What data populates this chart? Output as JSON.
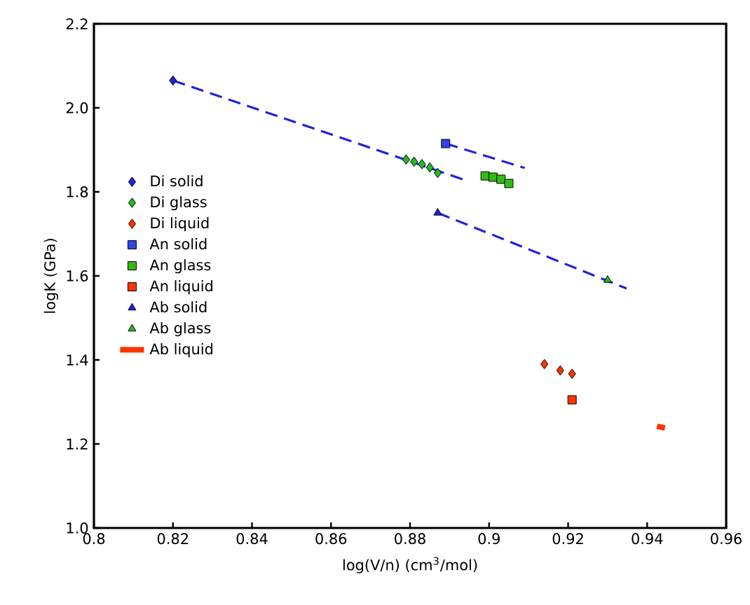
{
  "chart_data": {
    "type": "scatter",
    "xlabel": "log(V/n) (cm$^{3}$/mol)",
    "ylabel": "logK (GPa)",
    "xlim": [
      0.8,
      0.96
    ],
    "ylim": [
      1.0,
      2.2
    ],
    "xticks": [
      0.8,
      0.82,
      0.84,
      0.86,
      0.88,
      0.9,
      0.92,
      0.94,
      0.96
    ],
    "yticks": [
      {
        "value": 1.0,
        "label": "1.0"
      },
      {
        "value": 1.2,
        "label": "1.2"
      },
      {
        "value": 1.4,
        "label": "1.4"
      },
      {
        "value": 1.6,
        "label": "1.6"
      },
      {
        "value": 1.8,
        "label": "1.8"
      },
      {
        "value": 2.0,
        "label": "2.0"
      },
      {
        "value": 2.2,
        "label": "2.2"
      }
    ],
    "grid": false,
    "legend": "left",
    "series": [
      {
        "name": "Di solid",
        "color": "#2222dd",
        "marker": "diamond",
        "x": [
          0.82
        ],
        "values": [
          2.065
        ]
      },
      {
        "name": "Di glass",
        "color": "#22bb22",
        "marker": "diamond",
        "x": [
          0.879,
          0.881,
          0.883,
          0.885,
          0.887
        ],
        "values": [
          1.877,
          1.872,
          1.866,
          1.858,
          1.845
        ]
      },
      {
        "name": "Di liquid",
        "color": "#ff3300",
        "marker": "diamond",
        "x": [
          0.914,
          0.918,
          0.921
        ],
        "values": [
          1.39,
          1.375,
          1.367
        ]
      },
      {
        "name": "An solid",
        "color": "#3344ee",
        "marker": "square",
        "x": [
          0.889
        ],
        "values": [
          1.915
        ]
      },
      {
        "name": "An glass",
        "color": "#33bb11",
        "marker": "square",
        "x": [
          0.899,
          0.901,
          0.903,
          0.905
        ],
        "values": [
          1.838,
          1.835,
          1.83,
          1.82
        ]
      },
      {
        "name": "An liquid",
        "color": "#ff3300",
        "marker": "square",
        "x": [
          0.921
        ],
        "values": [
          1.305
        ]
      },
      {
        "name": "Ab solid",
        "color": "#2222dd",
        "marker": "triangle",
        "x": [
          0.887
        ],
        "values": [
          1.75
        ]
      },
      {
        "name": "Ab glass",
        "color": "#22bb22",
        "marker": "triangle",
        "x": [
          0.93
        ],
        "values": [
          1.59
        ]
      },
      {
        "name": "Ab liquid",
        "type": "line",
        "color": "#ff3300",
        "marker": "none",
        "line_style": "solid",
        "x": [
          0.9425,
          0.9445
        ],
        "values": [
          1.242,
          1.238
        ]
      },
      {
        "type": "line",
        "color": "#2222dd",
        "marker": "none",
        "line_style": "dashed",
        "x": [
          0.82,
          0.8933
        ],
        "values": [
          2.065,
          1.83
        ]
      },
      {
        "type": "line",
        "color": "#2222dd",
        "marker": "none",
        "line_style": "dashed",
        "x": [
          0.889,
          0.909
        ],
        "values": [
          1.915,
          1.857
        ]
      },
      {
        "type": "line",
        "color": "#2222dd",
        "marker": "none",
        "line_style": "dashed",
        "x": [
          0.887,
          0.9348
        ],
        "values": [
          1.75,
          1.57
        ]
      }
    ]
  }
}
